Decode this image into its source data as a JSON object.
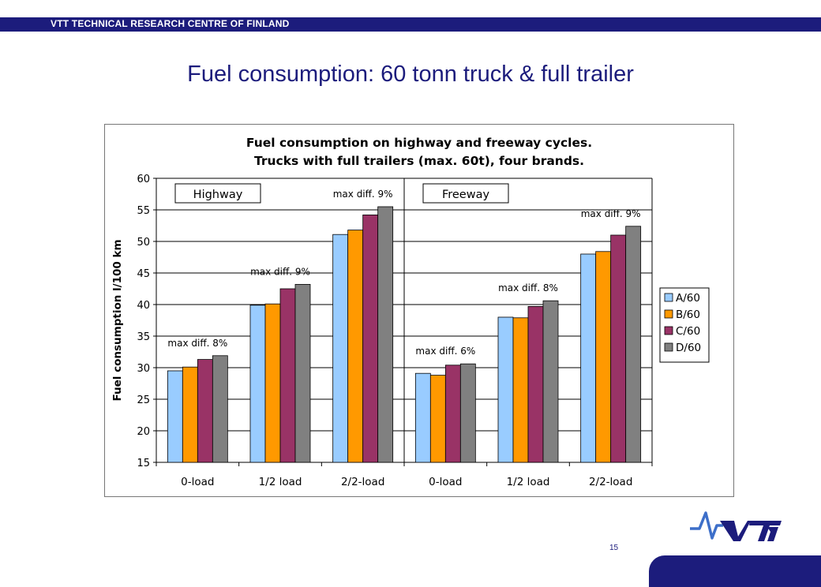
{
  "header": {
    "org": "VTT TECHNICAL RESEARCH CENTRE OF FINLAND"
  },
  "slide": {
    "title": "Fuel consumption: 60 tonn truck & full trailer",
    "page_number": "15"
  },
  "chart_data": {
    "type": "bar",
    "title": [
      "Fuel consumption on highway and freeway cycles.",
      "Trucks with full trailers (max. 60t), four brands."
    ],
    "ylabel": "Fuel consumption l/100 km",
    "xlabel": "",
    "ylim": [
      15,
      60
    ],
    "yticks": [
      15,
      20,
      25,
      30,
      35,
      40,
      45,
      50,
      55,
      60
    ],
    "grid": true,
    "legend_position": "right",
    "categories": [
      "0-load",
      "1/2 load",
      "2/2-load",
      "0-load",
      "1/2 load",
      "2/2-load"
    ],
    "groups": [
      "Highway",
      "Freeway"
    ],
    "series": [
      {
        "name": "A/60",
        "color": "#99ccff",
        "values": [
          29.5,
          39.9,
          51.1,
          29.1,
          38.0,
          48.0
        ]
      },
      {
        "name": "B/60",
        "color": "#ff9900",
        "values": [
          30.1,
          40.1,
          51.8,
          28.8,
          37.9,
          48.4
        ]
      },
      {
        "name": "C/60",
        "color": "#993366",
        "values": [
          31.3,
          42.5,
          54.2,
          30.4,
          39.7,
          51.0
        ]
      },
      {
        "name": "D/60",
        "color": "#808080",
        "values": [
          31.9,
          43.2,
          55.5,
          30.6,
          40.6,
          52.4
        ]
      }
    ],
    "annotations": [
      "max diff. 8%",
      "max diff. 9%",
      "max diff. 9%",
      "max diff. 6%",
      "max diff. 8%",
      "max diff. 9%"
    ]
  }
}
